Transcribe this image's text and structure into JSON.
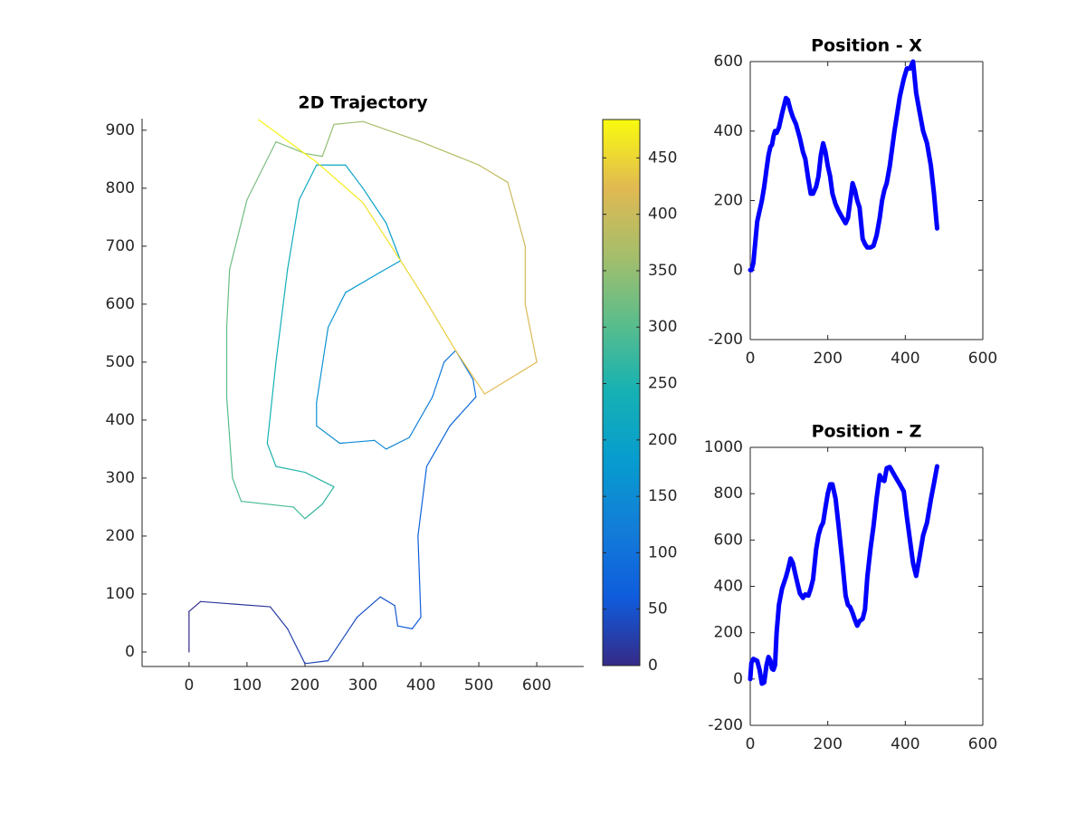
{
  "chart_data": [
    {
      "type": "trajectory",
      "title": "2D Trajectory",
      "colormap": "parula",
      "x": [
        0,
        0,
        20,
        140,
        170,
        200,
        240,
        290,
        330,
        355,
        360,
        385,
        400,
        395,
        410,
        450,
        495,
        490,
        460,
        440,
        420,
        380,
        340,
        320,
        260,
        220,
        220,
        240,
        270,
        330,
        365,
        340,
        300,
        270,
        220,
        190,
        170,
        150,
        135,
        150,
        200,
        250,
        230,
        200,
        180,
        90,
        75,
        65,
        65,
        70,
        100,
        150,
        200,
        230,
        250,
        300,
        400,
        500,
        550,
        580,
        580,
        600,
        510,
        460,
        400,
        365,
        300,
        220,
        120
      ],
      "values": [
        0,
        70,
        87,
        78,
        40,
        -20,
        -15,
        60,
        95,
        80,
        45,
        40,
        60,
        200,
        320,
        390,
        440,
        470,
        520,
        500,
        440,
        370,
        350,
        365,
        360,
        390,
        430,
        560,
        620,
        655,
        675,
        740,
        800,
        840,
        840,
        780,
        660,
        500,
        360,
        320,
        310,
        285,
        255,
        230,
        250,
        260,
        300,
        440,
        560,
        660,
        780,
        880,
        860,
        855,
        910,
        915,
        880,
        840,
        810,
        700,
        600,
        500,
        445,
        520,
        620,
        675,
        775,
        845,
        918
      ],
      "color_values": [
        0,
        3,
        8,
        18,
        24,
        30,
        36,
        42,
        47,
        52,
        56,
        60,
        64,
        68,
        74,
        82,
        92,
        97,
        104,
        110,
        118,
        128,
        136,
        142,
        150,
        156,
        162,
        170,
        176,
        182,
        188,
        194,
        200,
        206,
        212,
        220,
        228,
        238,
        246,
        252,
        258,
        264,
        270,
        276,
        282,
        290,
        296,
        302,
        310,
        318,
        326,
        334,
        340,
        346,
        352,
        360,
        372,
        386,
        396,
        404,
        412,
        420,
        428,
        436,
        446,
        456,
        466,
        474,
        482
      ],
      "xlim": [
        -81,
        681
      ],
      "ylim": [
        -25,
        920
      ],
      "xticks": [
        0,
        100,
        200,
        300,
        400,
        500,
        600
      ],
      "yticks": [
        0,
        100,
        200,
        300,
        400,
        500,
        600,
        700,
        800,
        900
      ],
      "clim": [
        0,
        484
      ],
      "cticks": [
        0,
        50,
        100,
        150,
        200,
        250,
        300,
        350,
        400,
        450
      ],
      "box": false
    },
    {
      "type": "line",
      "title": "Position - X",
      "color": "#0000ff",
      "x": [
        0,
        3,
        8,
        18,
        24,
        30,
        36,
        42,
        47,
        52,
        56,
        60,
        64,
        68,
        74,
        82,
        92,
        97,
        104,
        110,
        118,
        128,
        136,
        142,
        150,
        156,
        162,
        170,
        176,
        182,
        188,
        194,
        200,
        206,
        212,
        220,
        228,
        238,
        246,
        252,
        258,
        264,
        270,
        276,
        282,
        290,
        296,
        302,
        310,
        318,
        326,
        334,
        340,
        346,
        352,
        360,
        372,
        386,
        396,
        404,
        412,
        420,
        428,
        436,
        446,
        456,
        466,
        474,
        482
      ],
      "values": [
        0,
        0,
        20,
        140,
        170,
        200,
        240,
        290,
        330,
        355,
        360,
        385,
        400,
        395,
        410,
        450,
        495,
        490,
        460,
        440,
        420,
        380,
        340,
        320,
        260,
        220,
        220,
        240,
        270,
        330,
        365,
        340,
        300,
        270,
        220,
        190,
        170,
        150,
        135,
        150,
        200,
        250,
        230,
        200,
        180,
        90,
        75,
        65,
        65,
        70,
        100,
        150,
        200,
        230,
        250,
        300,
        400,
        500,
        550,
        580,
        580,
        600,
        510,
        460,
        400,
        365,
        300,
        220,
        120
      ],
      "xlim": [
        0,
        600
      ],
      "ylim": [
        -200,
        600
      ],
      "xticks": [
        0,
        200,
        400,
        600
      ],
      "yticks": [
        -200,
        0,
        200,
        400,
        600
      ],
      "box": true
    },
    {
      "type": "line",
      "title": "Position - Z",
      "color": "#0000ff",
      "x": [
        0,
        3,
        8,
        18,
        24,
        30,
        36,
        42,
        47,
        52,
        56,
        60,
        64,
        68,
        74,
        82,
        92,
        97,
        104,
        110,
        118,
        128,
        136,
        142,
        150,
        156,
        162,
        170,
        176,
        182,
        188,
        194,
        200,
        206,
        212,
        220,
        228,
        238,
        246,
        252,
        258,
        264,
        270,
        276,
        282,
        290,
        296,
        302,
        310,
        318,
        326,
        334,
        340,
        346,
        352,
        360,
        372,
        386,
        396,
        404,
        412,
        420,
        428,
        436,
        446,
        456,
        466,
        474,
        482
      ],
      "values": [
        0,
        70,
        87,
        78,
        40,
        -20,
        -15,
        60,
        95,
        80,
        45,
        40,
        60,
        200,
        320,
        390,
        440,
        470,
        520,
        500,
        440,
        370,
        350,
        365,
        360,
        390,
        430,
        560,
        620,
        655,
        675,
        740,
        800,
        840,
        840,
        780,
        660,
        500,
        360,
        320,
        310,
        285,
        255,
        230,
        250,
        260,
        300,
        440,
        560,
        660,
        780,
        880,
        860,
        855,
        910,
        915,
        880,
        840,
        810,
        700,
        600,
        500,
        445,
        520,
        620,
        675,
        775,
        845,
        918
      ],
      "xlim": [
        0,
        600
      ],
      "ylim": [
        -200,
        1000
      ],
      "xticks": [
        0,
        200,
        400,
        600
      ],
      "yticks": [
        -200,
        0,
        200,
        400,
        600,
        800,
        1000
      ],
      "box": true
    }
  ]
}
